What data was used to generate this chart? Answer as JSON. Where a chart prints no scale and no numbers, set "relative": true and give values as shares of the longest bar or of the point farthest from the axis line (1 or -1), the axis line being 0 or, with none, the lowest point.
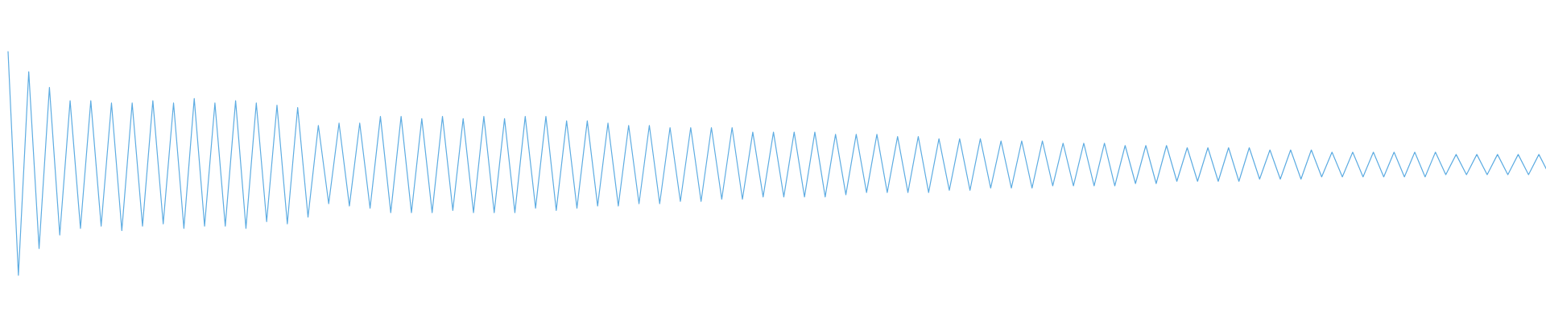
{
  "chart_data": {
    "type": "line",
    "relative": true,
    "color": "#5dace2",
    "marker": "none",
    "line_style": "solid",
    "categories": [
      null,
      null,
      null,
      null,
      null,
      null,
      null,
      null,
      null,
      null,
      null,
      null,
      null,
      null,
      null,
      null,
      null,
      null,
      null,
      null,
      null,
      null,
      null,
      null,
      null,
      null,
      null,
      null,
      null,
      null,
      null,
      null,
      null,
      null,
      null,
      null,
      null,
      null,
      null,
      null,
      null,
      null,
      null,
      null,
      null,
      null,
      null,
      null,
      null,
      null,
      null,
      null,
      null,
      null,
      null,
      null,
      null,
      null,
      null,
      null,
      null,
      null,
      null,
      null,
      null,
      null,
      null,
      null,
      null,
      null,
      null,
      null,
      null,
      null,
      null,
      null,
      null,
      null,
      null,
      null,
      null,
      null,
      null,
      null,
      null,
      null,
      null,
      null,
      null,
      null,
      null,
      null,
      null,
      null,
      null,
      null,
      null,
      null,
      null,
      null,
      null,
      null,
      null,
      null,
      null,
      null,
      null,
      null,
      null,
      null,
      null,
      null,
      null,
      null,
      null,
      null,
      null,
      null,
      null,
      null,
      null,
      null,
      null,
      null,
      null,
      null,
      null,
      null,
      null,
      null,
      null,
      null,
      null,
      null,
      null,
      null,
      null,
      null,
      null,
      null,
      null,
      null,
      null,
      null,
      null,
      null,
      null,
      null,
      null,
      null
    ],
    "values": [
      1.0,
      0.0,
      0.91,
      0.12,
      0.84,
      0.18,
      0.78,
      0.21,
      0.78,
      0.22,
      0.77,
      0.2,
      0.77,
      0.22,
      0.78,
      0.23,
      0.77,
      0.21,
      0.79,
      0.22,
      0.77,
      0.22,
      0.78,
      0.21,
      0.77,
      0.24,
      0.76,
      0.23,
      0.75,
      0.26,
      0.67,
      0.32,
      0.68,
      0.31,
      0.68,
      0.3,
      0.71,
      0.28,
      0.71,
      0.28,
      0.7,
      0.28,
      0.71,
      0.29,
      0.7,
      0.28,
      0.71,
      0.28,
      0.7,
      0.28,
      0.71,
      0.3,
      0.71,
      0.29,
      0.69,
      0.3,
      0.69,
      0.31,
      0.68,
      0.31,
      0.67,
      0.32,
      0.67,
      0.32,
      0.66,
      0.33,
      0.66,
      0.33,
      0.66,
      0.34,
      0.66,
      0.34,
      0.64,
      0.35,
      0.64,
      0.35,
      0.64,
      0.35,
      0.64,
      0.35,
      0.63,
      0.36,
      0.63,
      0.37,
      0.63,
      0.37,
      0.62,
      0.37,
      0.62,
      0.37,
      0.61,
      0.38,
      0.61,
      0.38,
      0.61,
      0.39,
      0.6,
      0.39,
      0.6,
      0.39,
      0.6,
      0.4,
      0.59,
      0.4,
      0.59,
      0.4,
      0.59,
      0.4,
      0.58,
      0.41,
      0.58,
      0.41,
      0.58,
      0.42,
      0.57,
      0.42,
      0.57,
      0.42,
      0.57,
      0.42,
      0.57,
      0.43,
      0.56,
      0.43,
      0.56,
      0.43,
      0.56,
      0.44,
      0.55,
      0.44,
      0.55,
      0.44,
      0.55,
      0.44,
      0.55,
      0.44,
      0.55,
      0.44,
      0.55,
      0.45,
      0.54,
      0.45,
      0.54,
      0.45,
      0.54,
      0.45,
      0.54,
      0.45,
      0.54,
      0.45
    ]
  }
}
